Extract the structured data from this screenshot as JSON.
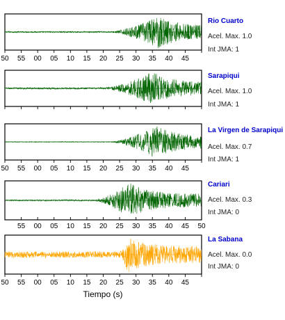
{
  "chart_data": {
    "type": "line",
    "xlabel": "Tiempo (s)",
    "x_tick_labels": [
      "50",
      "55",
      "00",
      "05",
      "10",
      "15",
      "20",
      "25",
      "30",
      "35",
      "40",
      "45",
      "50"
    ],
    "colors": {
      "station_name": "#0000cc",
      "trace_default": "#006400",
      "trace_highlight": "#ffa500",
      "frame": "#000000"
    },
    "stations": [
      {
        "name": "Rio Cuarto",
        "acel_label": "Acel. Max. 1.0",
        "int_label": "Int JMA: 1",
        "acel_max": 1.0,
        "int_jma": 1,
        "trace_color": "#006400",
        "noise_level": 0.04,
        "onset_s": 32,
        "peak_s": 47,
        "peak_amplitude": 1.0,
        "ticks_shown": [
          "50",
          "55",
          "00",
          "05",
          "10",
          "15",
          "20",
          "25",
          "30",
          "35",
          "40",
          "45"
        ]
      },
      {
        "name": "Sarapiqui",
        "acel_label": "Acel. Max. 1.0",
        "int_label": "Int JMA: 1",
        "acel_max": 1.0,
        "int_jma": 1,
        "trace_color": "#006400",
        "noise_level": 0.05,
        "onset_s": 30,
        "peak_s": 45,
        "peak_amplitude": 1.0,
        "ticks_shown": [
          "50",
          "55",
          "00",
          "05",
          "10",
          "15",
          "20",
          "25",
          "30",
          "35",
          "40",
          "45"
        ]
      },
      {
        "name": "La Virgen de Sarapiqui",
        "acel_label": "Acel. Max. 0.7",
        "int_label": "Int JMA: 1",
        "acel_max": 0.7,
        "int_jma": 1,
        "trace_color": "#006400",
        "noise_level": 0.02,
        "onset_s": 32,
        "peak_s": 46,
        "peak_amplitude": 1.0,
        "ticks_shown": [
          "50",
          "55",
          "00",
          "05",
          "10",
          "15",
          "20",
          "25",
          "30",
          "35",
          "40",
          "45"
        ]
      },
      {
        "name": "Cariari",
        "acel_label": "Acel. Max. 0.3",
        "int_label": "Int JMA: 0",
        "acel_max": 0.3,
        "int_jma": 0,
        "trace_color": "#006400",
        "noise_level": 0.04,
        "onset_s": 27,
        "peak_s": 38,
        "peak_amplitude": 1.0,
        "ticks_shown": [
          "55",
          "00",
          "05",
          "10",
          "15",
          "20",
          "25",
          "30",
          "35",
          "40",
          "45",
          "50"
        ]
      },
      {
        "name": "La Sabana",
        "acel_label": "Acel. Max. 0.0",
        "int_label": "Int JMA: 0",
        "acel_max": 0.0,
        "int_jma": 0,
        "trace_color": "#ffa500",
        "noise_level": 0.18,
        "onset_s": 35,
        "peak_s": 37.5,
        "peak_amplitude": 1.0,
        "ticks_shown": [
          "50",
          "55",
          "00",
          "05",
          "10",
          "15",
          "20",
          "25",
          "30",
          "35",
          "40",
          "45"
        ]
      }
    ]
  }
}
